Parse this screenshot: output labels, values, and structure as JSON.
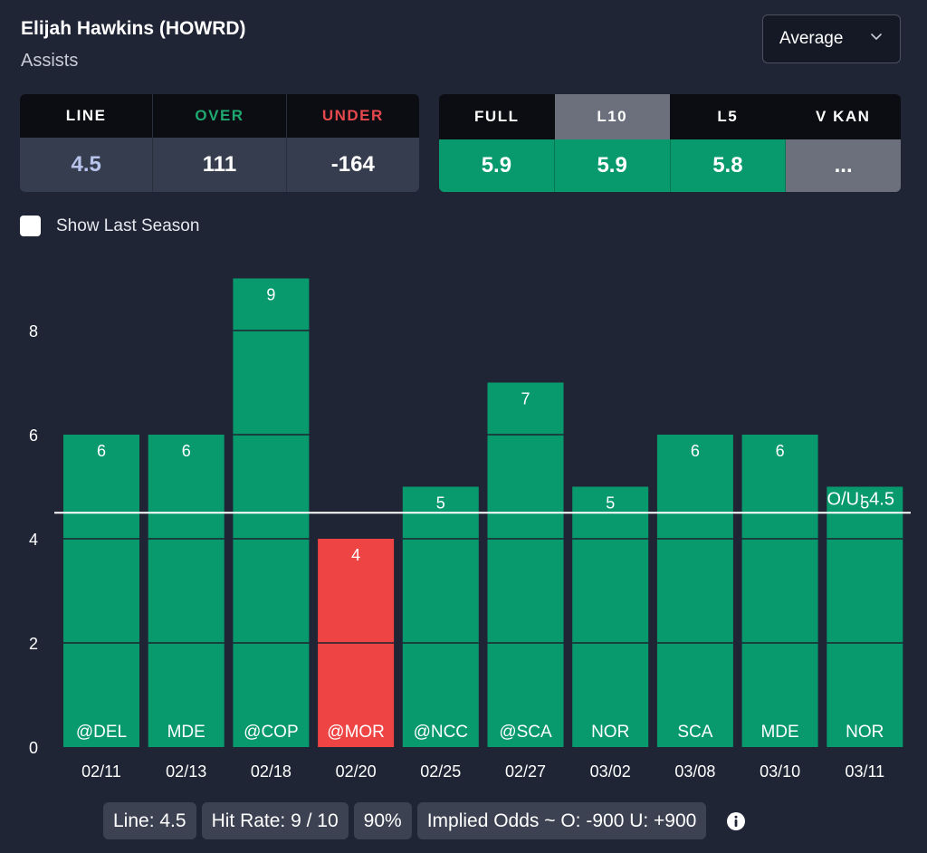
{
  "header": {
    "player_name": "Elijah Hawkins (HOWRD)",
    "stat": "Assists"
  },
  "dropdown": {
    "value": "Average"
  },
  "odds_table": {
    "headers": [
      "LINE",
      "OVER",
      "UNDER"
    ],
    "values": [
      "4.5",
      "111",
      "-164"
    ]
  },
  "avg_table": {
    "headers": [
      "FULL",
      "L10",
      "L5",
      "V KAN"
    ],
    "values": [
      "5.9",
      "5.9",
      "5.8",
      "..."
    ],
    "active_tab": "L10"
  },
  "options": {
    "show_last_season": "Show Last Season"
  },
  "colors": {
    "over": "#089a6d",
    "under": "#ef4444",
    "line": "#ffffff",
    "grid": "#1c2230"
  },
  "chart_data": {
    "type": "bar",
    "categories": [
      "02/11",
      "02/13",
      "02/18",
      "02/20",
      "02/25",
      "02/27",
      "03/02",
      "03/08",
      "03/10",
      "03/11"
    ],
    "opponents": [
      "@DEL",
      "MDE",
      "@COP",
      "@MOR",
      "@NCC",
      "@SCA",
      "NOR",
      "SCA",
      "MDE",
      "NOR"
    ],
    "values": [
      6,
      6,
      9,
      4,
      5,
      7,
      5,
      6,
      6,
      5
    ],
    "line": 4.5,
    "line_label": "O/U: 4.5",
    "ylim": [
      0,
      9
    ],
    "yticks": [
      0,
      2,
      4,
      6,
      8
    ],
    "title": "",
    "xlabel": "",
    "ylabel": ""
  },
  "footer": {
    "line": "Line: 4.5",
    "hit_rate": "Hit Rate: 9 / 10",
    "percent": "90%",
    "implied_odds": "Implied Odds ~ O: -900 U: +900"
  }
}
